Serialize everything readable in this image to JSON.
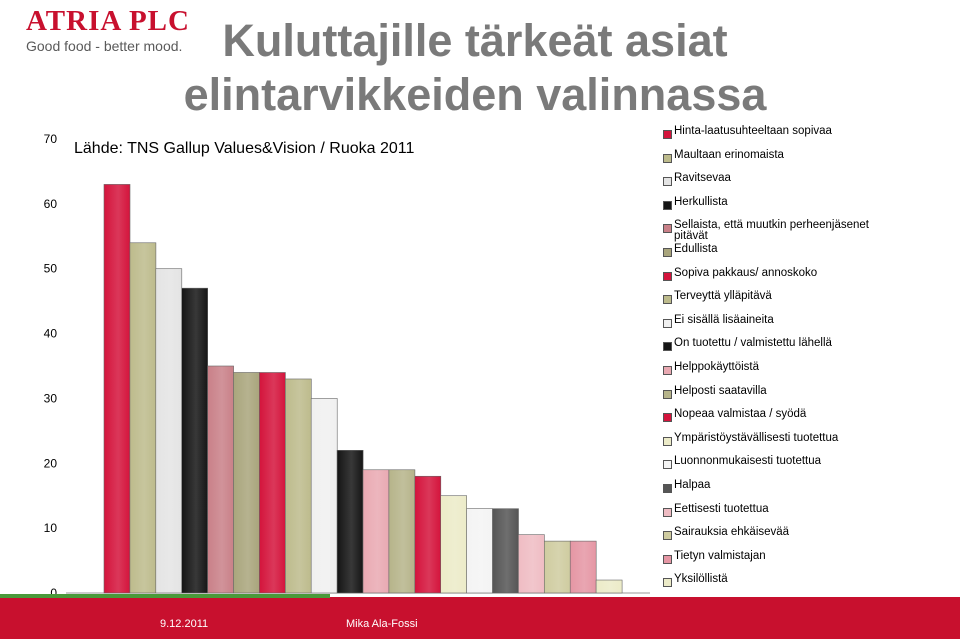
{
  "logo": {
    "word": "ATRIA PLC",
    "tagline": "Good food - better mood."
  },
  "title": "Kuluttajille tärkeät asiat elintarvikkeiden valinnassa",
  "source": "Lähde: TNS Gallup Values&Vision / Ruoka 2011",
  "footer": {
    "date": "9.12.2011",
    "author": "Mika Ala-Fossi"
  },
  "colors": {
    "brand_red": "#c8102e",
    "green_bar": "#4a9a3a"
  },
  "chart_data": {
    "type": "bar",
    "ylim": [
      0,
      70
    ],
    "yticks": [
      0,
      10,
      20,
      30,
      40,
      50,
      60,
      70
    ],
    "grid": false,
    "legend_position": "right",
    "categories": [
      "Hinta-laatusuhteeltaan sopivaa",
      "Maultaan erinomaista",
      "Ravitsevaa",
      "Herkullista",
      "Sellaista, että muutkin perheenjäsenet pitävät",
      "Edullista",
      "Sopiva pakkaus/ annoskoko",
      "Terveyttä ylläpitävä",
      "Ei sisällä lisäaineita",
      "On tuotettu / valmistettu lähellä",
      "Helppokäyttöistä",
      "Helposti saatavilla",
      "Nopeaa valmistaa / syödä",
      "Ympäristöystävällisesti tuotettua",
      "Luonnonmukaisesti tuotettua",
      "Halpaa",
      "Eettisesti tuotettua",
      "Sairauksia ehkäisevää",
      "Tietyn valmistajan",
      "Yksilöllistä"
    ],
    "values": [
      63,
      54,
      50,
      47,
      35,
      34,
      34,
      33,
      30,
      22,
      19,
      19,
      18,
      15,
      13,
      13,
      9,
      8,
      8,
      2
    ],
    "colors": [
      "#d4143c",
      "#bdbb8c",
      "#e4e4e4",
      "#151515",
      "#c98088",
      "#a9a57c",
      "#d4143c",
      "#bdbb8c",
      "#f0f0f0",
      "#151515",
      "#e9a9b2",
      "#b6b48a",
      "#d4143c",
      "#ecebc8",
      "#f4f4f4",
      "#555555",
      "#efbcc3",
      "#cfcca0",
      "#e596a4",
      "#ecebc8"
    ]
  }
}
